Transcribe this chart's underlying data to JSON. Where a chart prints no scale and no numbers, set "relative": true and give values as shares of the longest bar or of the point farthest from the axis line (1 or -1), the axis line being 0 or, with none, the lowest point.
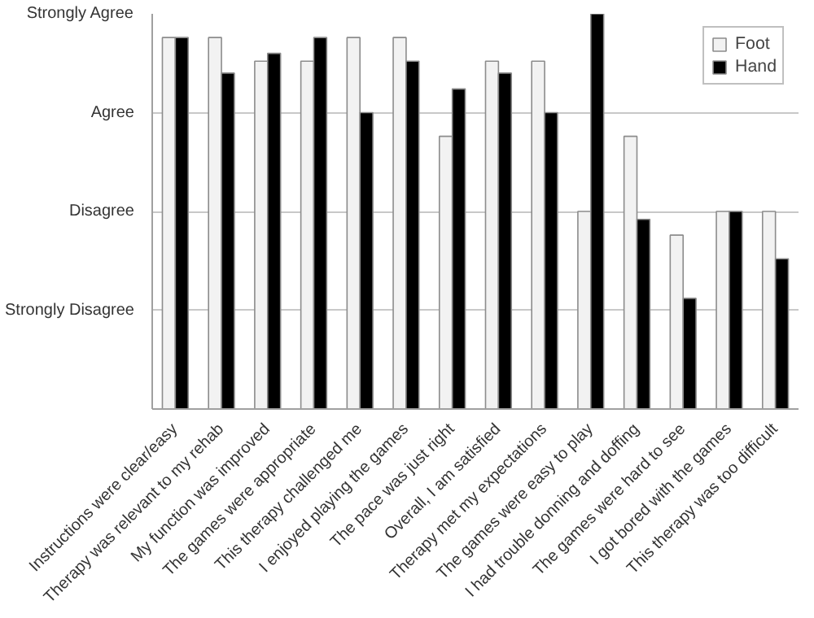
{
  "chart_data": {
    "type": "bar",
    "relative": true,
    "categories": [
      "Instructions were clear/easy",
      "Therapy was relevant to my rehab",
      "My function was improved",
      "The games were appropriate",
      "This therapy challenged me",
      "I enjoyed playing the games",
      "The pace was just right",
      "Overall, I am satisfied",
      "Therapy met my expectations",
      "The games were easy to play",
      "I had trouble donning and doffing",
      "The games were hard to see",
      "I got bored with the games",
      "This therapy was too difficult"
    ],
    "series": [
      {
        "name": "Foot",
        "color": "#f2f2f2",
        "values": [
          0.94,
          0.94,
          0.88,
          0.88,
          0.94,
          0.94,
          0.69,
          0.88,
          0.88,
          0.5,
          0.69,
          0.44,
          0.5,
          0.5
        ]
      },
      {
        "name": "Hand",
        "color": "#000000",
        "values": [
          0.94,
          0.85,
          0.9,
          0.94,
          0.75,
          0.88,
          0.81,
          0.85,
          0.75,
          1.0,
          0.48,
          0.28,
          0.5,
          0.38
        ]
      }
    ],
    "annotations": [
      "Strongly Disagree",
      "Disagree",
      "Agree",
      "Strongly Agree"
    ],
    "grid": "y",
    "legend": "top right"
  }
}
